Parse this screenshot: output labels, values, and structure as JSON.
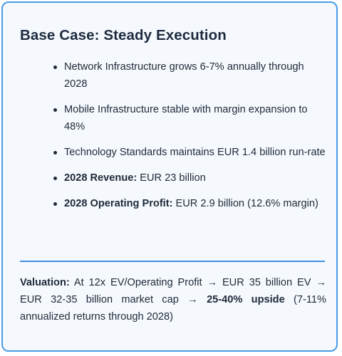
{
  "card": {
    "title": "Base Case: Steady Execution",
    "bullets": [
      {
        "bold": "",
        "text": "Network Infrastructure grows 6-7% annually through 2028"
      },
      {
        "bold": "",
        "text": "Mobile Infrastructure stable with margin expansion to 48%"
      },
      {
        "bold": "",
        "text": "Technology Standards maintains EUR 1.4 billion run-rate"
      },
      {
        "bold": "2028 Revenue:",
        "text": " EUR 23 billion"
      },
      {
        "bold": "2028 Operating Profit:",
        "text": " EUR 2.9 billion (12.6% margin)"
      }
    ],
    "valuation": {
      "label": "Valuation:",
      "text_before": " At 12x EV/Operating Profit → EUR 35 billion EV → EUR 32-35 billion market cap → ",
      "highlight": "25-40% upside",
      "text_after": " (7-11% annualized returns through 2028)"
    }
  },
  "colors": {
    "border": "#4a9be6",
    "background": "#f5f9fe",
    "divider": "#3f8fde",
    "title": "#1e2b3f",
    "text": "#1f2937"
  }
}
